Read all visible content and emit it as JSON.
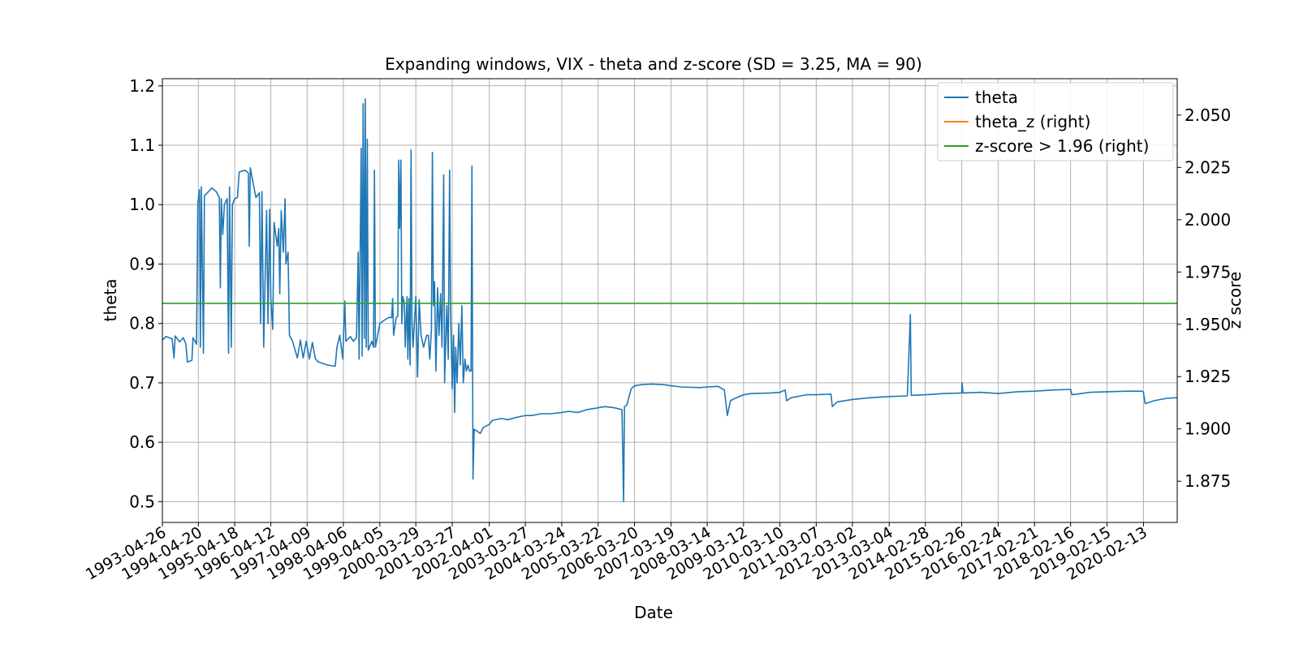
{
  "chart_data": {
    "type": "line",
    "title": "Expanding windows, VIX - theta and z-score (SD = 3.25, MA = 90)",
    "xlabel": "Date",
    "ylabel": "theta",
    "ylabel_right": "z score",
    "x_tick_labels": [
      "1993-04-26",
      "1994-04-20",
      "1995-04-18",
      "1996-04-12",
      "1997-04-09",
      "1998-04-06",
      "1999-04-05",
      "2000-03-29",
      "2001-03-27",
      "2002-04-01",
      "2003-03-27",
      "2004-03-24",
      "2005-03-22",
      "2006-03-20",
      "2007-03-19",
      "2008-03-14",
      "2009-03-12",
      "2010-03-10",
      "2011-03-07",
      "2012-03-02",
      "2013-03-04",
      "2014-02-28",
      "2015-02-26",
      "2016-02-24",
      "2017-02-21",
      "2018-02-16",
      "2019-02-15",
      "2020-02-13"
    ],
    "x_range": [
      "1993-04-26",
      "2021-01-15"
    ],
    "y_left_ticks": [
      "0.5",
      "0.6",
      "0.7",
      "0.8",
      "0.9",
      "1.0",
      "1.1",
      "1.2"
    ],
    "y_left_range": [
      0.465,
      1.212
    ],
    "y_right_ticks": [
      "1.875",
      "1.900",
      "1.925",
      "1.950",
      "1.975",
      "2.000",
      "2.025",
      "2.050"
    ],
    "y_right_range": [
      1.8553,
      2.0674
    ],
    "grid": true,
    "legend_position": "top-right",
    "series": [
      {
        "name": "theta",
        "axis": "left",
        "color": "#1f77b4",
        "points": [
          [
            "1993-04-26",
            0.772
          ],
          [
            "1993-06-01",
            0.778
          ],
          [
            "1993-08-01",
            0.774
          ],
          [
            "1993-08-20",
            0.742
          ],
          [
            "1993-09-01",
            0.779
          ],
          [
            "1993-10-15",
            0.769
          ],
          [
            "1993-11-20",
            0.776
          ],
          [
            "1993-12-15",
            0.766
          ],
          [
            "1994-01-01",
            0.735
          ],
          [
            "1994-02-15",
            0.738
          ],
          [
            "1994-02-25",
            0.776
          ],
          [
            "1994-04-01",
            0.765
          ],
          [
            "1994-04-15",
            1.003
          ],
          [
            "1994-05-01",
            1.025
          ],
          [
            "1994-05-10",
            0.76
          ],
          [
            "1994-05-20",
            1.03
          ],
          [
            "1994-06-10",
            0.75
          ],
          [
            "1994-06-20",
            1.015
          ],
          [
            "1994-08-01",
            1.022
          ],
          [
            "1994-09-01",
            1.028
          ],
          [
            "1994-10-15",
            1.022
          ],
          [
            "1994-11-15",
            1.012
          ],
          [
            "1994-11-25",
            0.86
          ],
          [
            "1994-12-05",
            1.01
          ],
          [
            "1994-12-20",
            0.95
          ],
          [
            "1995-01-05",
            1.0
          ],
          [
            "1995-02-01",
            1.01
          ],
          [
            "1995-02-15",
            0.75
          ],
          [
            "1995-02-25",
            1.03
          ],
          [
            "1995-03-15",
            0.76
          ],
          [
            "1995-03-25",
            1.0
          ],
          [
            "1995-04-18",
            1.01
          ],
          [
            "1995-05-15",
            1.012
          ],
          [
            "1995-06-01",
            1.055
          ],
          [
            "1995-08-01",
            1.058
          ],
          [
            "1995-09-01",
            1.053
          ],
          [
            "1995-09-10",
            0.93
          ],
          [
            "1995-09-20",
            1.062
          ],
          [
            "1995-10-15",
            1.04
          ],
          [
            "1995-11-15",
            1.012
          ],
          [
            "1995-12-20",
            1.02
          ],
          [
            "1996-01-01",
            0.8
          ],
          [
            "1996-01-15",
            1.022
          ],
          [
            "1996-02-01",
            0.76
          ],
          [
            "1996-02-10",
            0.835
          ],
          [
            "1996-03-01",
            0.99
          ],
          [
            "1996-03-15",
            0.8
          ],
          [
            "1996-04-01",
            0.992
          ],
          [
            "1996-04-12",
            0.84
          ],
          [
            "1996-05-01",
            0.79
          ],
          [
            "1996-05-15",
            0.97
          ],
          [
            "1996-06-15",
            0.93
          ],
          [
            "1996-07-01",
            0.96
          ],
          [
            "1996-07-10",
            0.85
          ],
          [
            "1996-07-25",
            0.99
          ],
          [
            "1996-08-15",
            0.92
          ],
          [
            "1996-09-01",
            1.01
          ],
          [
            "1996-09-10",
            0.9
          ],
          [
            "1996-10-01",
            0.92
          ],
          [
            "1996-10-15",
            0.78
          ],
          [
            "1996-11-15",
            0.77
          ],
          [
            "1997-01-01",
            0.742
          ],
          [
            "1997-02-01",
            0.772
          ],
          [
            "1997-03-01",
            0.742
          ],
          [
            "1997-04-01",
            0.77
          ],
          [
            "1997-05-01",
            0.74
          ],
          [
            "1997-06-01",
            0.768
          ],
          [
            "1997-07-01",
            0.74
          ],
          [
            "1997-08-01",
            0.735
          ],
          [
            "1997-11-01",
            0.73
          ],
          [
            "1998-01-15",
            0.728
          ],
          [
            "1998-02-01",
            0.76
          ],
          [
            "1998-03-01",
            0.78
          ],
          [
            "1998-04-01",
            0.74
          ],
          [
            "1998-04-06",
            0.77
          ],
          [
            "1998-04-20",
            0.838
          ],
          [
            "1998-05-01",
            0.77
          ],
          [
            "1998-06-15",
            0.778
          ],
          [
            "1998-07-15",
            0.77
          ],
          [
            "1998-08-15",
            0.776
          ],
          [
            "1998-09-01",
            0.92
          ],
          [
            "1998-09-10",
            0.74
          ],
          [
            "1998-10-01",
            1.095
          ],
          [
            "1998-10-10",
            0.745
          ],
          [
            "1998-10-20",
            1.17
          ],
          [
            "1998-11-01",
            0.775
          ],
          [
            "1998-11-10",
            1.178
          ],
          [
            "1998-11-20",
            0.76
          ],
          [
            "1998-12-01",
            1.11
          ],
          [
            "1998-12-10",
            0.755
          ],
          [
            "1999-01-15",
            0.77
          ],
          [
            "1999-02-01",
            0.76
          ],
          [
            "1999-02-10",
            1.058
          ],
          [
            "1999-02-20",
            0.76
          ],
          [
            "1999-04-05",
            0.8
          ],
          [
            "1999-05-15",
            0.805
          ],
          [
            "1999-07-01",
            0.81
          ],
          [
            "1999-08-01",
            0.81
          ],
          [
            "1999-08-10",
            0.842
          ],
          [
            "1999-08-20",
            0.78
          ],
          [
            "1999-09-15",
            0.81
          ],
          [
            "1999-10-01",
            0.812
          ],
          [
            "1999-10-10",
            1.075
          ],
          [
            "1999-10-20",
            0.96
          ],
          [
            "1999-11-01",
            1.075
          ],
          [
            "1999-11-10",
            0.8
          ],
          [
            "1999-11-20",
            0.845
          ],
          [
            "1999-12-05",
            0.835
          ],
          [
            "1999-12-15",
            0.76
          ],
          [
            "2000-01-01",
            0.845
          ],
          [
            "2000-01-10",
            0.74
          ],
          [
            "2000-01-20",
            0.842
          ],
          [
            "2000-02-01",
            0.73
          ],
          [
            "2000-02-10",
            1.092
          ],
          [
            "2000-02-20",
            0.8
          ],
          [
            "2000-03-01",
            0.76
          ],
          [
            "2000-03-29",
            0.845
          ],
          [
            "2000-04-15",
            0.71
          ],
          [
            "2000-05-01",
            0.84
          ],
          [
            "2000-05-20",
            0.78
          ],
          [
            "2000-06-15",
            0.76
          ],
          [
            "2000-07-15",
            0.78
          ],
          [
            "2000-08-01",
            0.78
          ],
          [
            "2000-08-15",
            0.74
          ],
          [
            "2000-09-01",
            0.79
          ],
          [
            "2000-09-10",
            1.088
          ],
          [
            "2000-09-20",
            0.83
          ],
          [
            "2000-10-01",
            0.87
          ],
          [
            "2000-10-15",
            0.72
          ],
          [
            "2000-11-01",
            0.86
          ],
          [
            "2000-11-15",
            0.78
          ],
          [
            "2000-12-01",
            0.85
          ],
          [
            "2000-12-15",
            0.76
          ],
          [
            "2001-01-01",
            1.05
          ],
          [
            "2001-01-10",
            0.7
          ],
          [
            "2001-02-01",
            0.83
          ],
          [
            "2001-02-15",
            0.74
          ],
          [
            "2001-03-01",
            1.058
          ],
          [
            "2001-03-10",
            0.83
          ],
          [
            "2001-03-27",
            0.69
          ],
          [
            "2001-04-10",
            0.78
          ],
          [
            "2001-04-20",
            0.65
          ],
          [
            "2001-05-01",
            0.76
          ],
          [
            "2001-05-15",
            0.7
          ],
          [
            "2001-06-01",
            0.8
          ],
          [
            "2001-06-15",
            0.73
          ],
          [
            "2001-07-01",
            0.83
          ],
          [
            "2001-07-15",
            0.7
          ],
          [
            "2001-08-01",
            0.74
          ],
          [
            "2001-08-15",
            0.72
          ],
          [
            "2001-09-01",
            0.73
          ],
          [
            "2001-09-15",
            0.72
          ],
          [
            "2001-10-01",
            0.72
          ],
          [
            "2001-10-10",
            1.065
          ],
          [
            "2001-10-20",
            0.538
          ],
          [
            "2001-11-01",
            0.622
          ],
          [
            "2002-01-01",
            0.615
          ],
          [
            "2002-02-01",
            0.625
          ],
          [
            "2002-04-01",
            0.63
          ],
          [
            "2002-05-01",
            0.637
          ],
          [
            "2002-08-01",
            0.64
          ],
          [
            "2002-10-01",
            0.638
          ],
          [
            "2003-01-01",
            0.642
          ],
          [
            "2003-03-27",
            0.645
          ],
          [
            "2003-06-01",
            0.645
          ],
          [
            "2003-09-01",
            0.648
          ],
          [
            "2003-12-01",
            0.648
          ],
          [
            "2004-03-24",
            0.65
          ],
          [
            "2004-06-01",
            0.652
          ],
          [
            "2004-09-01",
            0.65
          ],
          [
            "2004-12-01",
            0.655
          ],
          [
            "2005-03-22",
            0.658
          ],
          [
            "2005-06-01",
            0.66
          ],
          [
            "2005-09-01",
            0.658
          ],
          [
            "2005-11-15",
            0.655
          ],
          [
            "2005-12-01",
            0.5
          ],
          [
            "2005-12-10",
            0.66
          ],
          [
            "2006-01-01",
            0.662
          ],
          [
            "2006-02-15",
            0.69
          ],
          [
            "2006-03-20",
            0.695
          ],
          [
            "2006-06-01",
            0.697
          ],
          [
            "2006-09-01",
            0.698
          ],
          [
            "2007-01-01",
            0.697
          ],
          [
            "2007-03-19",
            0.695
          ],
          [
            "2007-07-01",
            0.693
          ],
          [
            "2008-01-01",
            0.692
          ],
          [
            "2008-03-14",
            0.693
          ],
          [
            "2008-07-01",
            0.694
          ],
          [
            "2008-09-01",
            0.688
          ],
          [
            "2008-10-01",
            0.645
          ],
          [
            "2008-11-01",
            0.67
          ],
          [
            "2009-01-01",
            0.675
          ],
          [
            "2009-03-12",
            0.68
          ],
          [
            "2009-06-01",
            0.682
          ],
          [
            "2009-12-01",
            0.683
          ],
          [
            "2010-03-10",
            0.684
          ],
          [
            "2010-05-01",
            0.688
          ],
          [
            "2010-05-15",
            0.67
          ],
          [
            "2010-07-01",
            0.675
          ],
          [
            "2010-12-01",
            0.68
          ],
          [
            "2011-03-07",
            0.68
          ],
          [
            "2011-08-01",
            0.681
          ],
          [
            "2011-08-15",
            0.66
          ],
          [
            "2011-10-01",
            0.668
          ],
          [
            "2012-03-02",
            0.672
          ],
          [
            "2012-09-01",
            0.675
          ],
          [
            "2013-03-04",
            0.677
          ],
          [
            "2013-09-01",
            0.678
          ],
          [
            "2013-10-01",
            0.815
          ],
          [
            "2013-10-10",
            0.679
          ],
          [
            "2014-02-28",
            0.68
          ],
          [
            "2014-09-01",
            0.682
          ],
          [
            "2015-02-26",
            0.683
          ],
          [
            "2015-03-01",
            0.7
          ],
          [
            "2015-03-10",
            0.683
          ],
          [
            "2015-09-01",
            0.684
          ],
          [
            "2016-02-24",
            0.682
          ],
          [
            "2016-09-01",
            0.685
          ],
          [
            "2017-02-21",
            0.686
          ],
          [
            "2017-09-01",
            0.688
          ],
          [
            "2018-02-16",
            0.689
          ],
          [
            "2018-03-01",
            0.68
          ],
          [
            "2018-09-01",
            0.684
          ],
          [
            "2019-02-15",
            0.685
          ],
          [
            "2019-09-01",
            0.686
          ],
          [
            "2020-02-01",
            0.686
          ],
          [
            "2020-02-13",
            0.684
          ],
          [
            "2020-03-01",
            0.665
          ],
          [
            "2020-06-01",
            0.67
          ],
          [
            "2020-10-01",
            0.674
          ],
          [
            "2021-01-15",
            0.675
          ]
        ]
      },
      {
        "name": "theta_z (right)",
        "axis": "right",
        "color": "#ff7f0e",
        "points": []
      },
      {
        "name": "z-score > 1.96 (right)",
        "axis": "right",
        "color": "#2ca02c",
        "constant": 1.96
      }
    ]
  }
}
